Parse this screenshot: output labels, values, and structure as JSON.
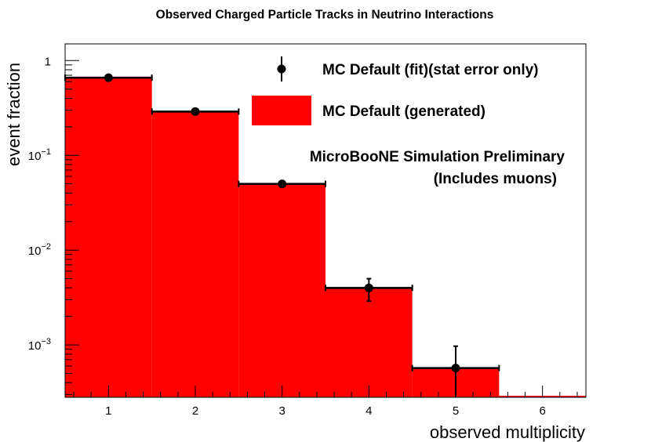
{
  "chart_data": {
    "type": "bar",
    "title": "Observed Charged Particle Tracks in Neutrino Interactions",
    "xlabel": "observed multiplicity",
    "ylabel": "event fraction",
    "xlim": [
      0.5,
      6.5
    ],
    "ylim": [
      0.00028,
      1.5
    ],
    "yscale": "log",
    "x_ticks": [
      1,
      2,
      3,
      4,
      5,
      6
    ],
    "y_ticks": [
      {
        "base": "1",
        "exp": ""
      },
      {
        "base": "10",
        "exp": "−1"
      },
      {
        "base": "10",
        "exp": "−2"
      },
      {
        "base": "10",
        "exp": "−3"
      }
    ],
    "legend_position": "top-right",
    "series": [
      {
        "name": "MC Default (generated)",
        "kind": "histogram",
        "color": "#ff0000",
        "bins": [
          {
            "low": 0.5,
            "high": 1.5,
            "value": 0.66
          },
          {
            "low": 1.5,
            "high": 2.5,
            "value": 0.29
          },
          {
            "low": 2.5,
            "high": 3.5,
            "value": 0.05
          },
          {
            "low": 3.5,
            "high": 4.5,
            "value": 0.004
          },
          {
            "low": 4.5,
            "high": 5.5,
            "value": 0.00057
          },
          {
            "low": 5.5,
            "high": 6.5,
            "value": 0
          }
        ]
      },
      {
        "name": "MC Default (fit)(stat error only)",
        "kind": "points",
        "color": "#000000",
        "points": [
          {
            "x": 1,
            "y": 0.66,
            "err_lo": 0.66,
            "err_hi": 0.66,
            "xerr": 0.5
          },
          {
            "x": 2,
            "y": 0.29,
            "err_lo": 0.29,
            "err_hi": 0.29,
            "xerr": 0.5
          },
          {
            "x": 3,
            "y": 0.05,
            "err_lo": 0.05,
            "err_hi": 0.05,
            "xerr": 0.5
          },
          {
            "x": 4,
            "y": 0.004,
            "err_lo": 0.0029,
            "err_hi": 0.005,
            "xerr": 0.5
          },
          {
            "x": 5,
            "y": 0.00057,
            "err_lo": 0.00028,
            "err_hi": 0.00097,
            "xerr": 0.5
          }
        ]
      }
    ],
    "annotations": [
      "MicroBooNE Simulation Preliminary",
      "(Includes muons)"
    ]
  }
}
